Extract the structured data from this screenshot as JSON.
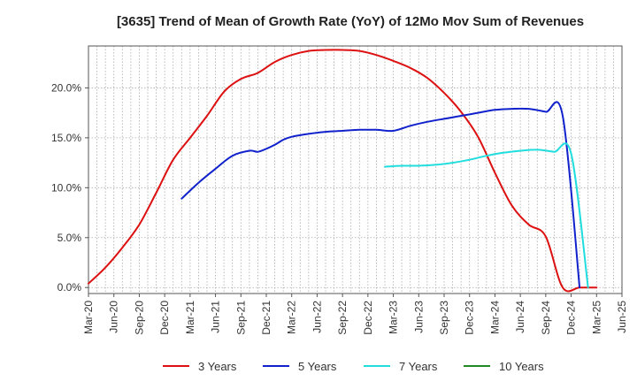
{
  "chart_data": {
    "type": "line",
    "title": "[3635]  Trend of Mean of Growth Rate (YoY) of 12Mo Mov Sum of Revenues",
    "xlabel": "",
    "ylabel": "",
    "ylim": [
      -0.6,
      24.2
    ],
    "yticks": [
      0.0,
      5.0,
      10.0,
      15.0,
      20.0
    ],
    "ytick_labels": [
      "0.0%",
      "5.0%",
      "10.0%",
      "15.0%",
      "20.0%"
    ],
    "xtick_labels": [
      "Mar-20",
      "Jun-20",
      "Sep-20",
      "Dec-20",
      "Mar-21",
      "Jun-21",
      "Sep-21",
      "Dec-21",
      "Mar-22",
      "Jun-22",
      "Sep-22",
      "Dec-22",
      "Mar-23",
      "Jun-23",
      "Sep-23",
      "Dec-23",
      "Mar-24",
      "Jun-24",
      "Sep-24",
      "Dec-24",
      "Mar-25",
      "Jun-25"
    ],
    "x_unit": "month index from Mar-20",
    "x_range": [
      0,
      63
    ],
    "grid": true,
    "legend_position": "bottom",
    "series": [
      {
        "name": "3 Years",
        "color": "#dd1111",
        "x": [
          0,
          2,
          4,
          6,
          8,
          10,
          12,
          14,
          16,
          18,
          20,
          22,
          24,
          26,
          28,
          30,
          32,
          34,
          36,
          38,
          40,
          42,
          44,
          46,
          48,
          50,
          52,
          54,
          56,
          58,
          60
        ],
        "values": [
          0.4,
          2.0,
          4.0,
          6.3,
          9.5,
          12.8,
          15.0,
          17.2,
          19.6,
          20.9,
          21.5,
          22.6,
          23.3,
          23.7,
          23.8,
          23.8,
          23.7,
          23.3,
          22.7,
          22.0,
          21.0,
          19.5,
          17.6,
          15.1,
          11.5,
          8.2,
          6.3,
          5.1,
          0,
          0,
          0
        ]
      },
      {
        "name": "5 Years",
        "color": "#1122cc",
        "x": [
          11,
          13,
          15,
          17,
          19,
          20,
          21,
          22,
          23,
          24,
          26,
          28,
          30,
          32,
          34,
          36,
          38,
          40,
          42,
          44,
          46,
          48,
          50,
          52,
          54,
          56,
          58,
          60
        ],
        "values": [
          8.9,
          10.5,
          11.9,
          13.2,
          13.7,
          13.6,
          13.9,
          14.3,
          14.8,
          15.1,
          15.4,
          15.6,
          15.7,
          15.8,
          15.8,
          15.7,
          16.2,
          16.6,
          16.9,
          17.2,
          17.5,
          17.8,
          17.9,
          17.9,
          17.6,
          17.2,
          0,
          0
        ]
      },
      {
        "name": "7 Years",
        "color": "#22dddd",
        "x": [
          35,
          37,
          39,
          41,
          43,
          45,
          47,
          49,
          51,
          53,
          55,
          57,
          59,
          60
        ],
        "values": [
          12.1,
          12.2,
          12.2,
          12.3,
          12.5,
          12.8,
          13.2,
          13.5,
          13.7,
          13.8,
          13.6,
          13.4,
          0,
          0
        ]
      },
      {
        "name": "10 Years",
        "color": "#228822",
        "x": [],
        "values": []
      }
    ]
  }
}
